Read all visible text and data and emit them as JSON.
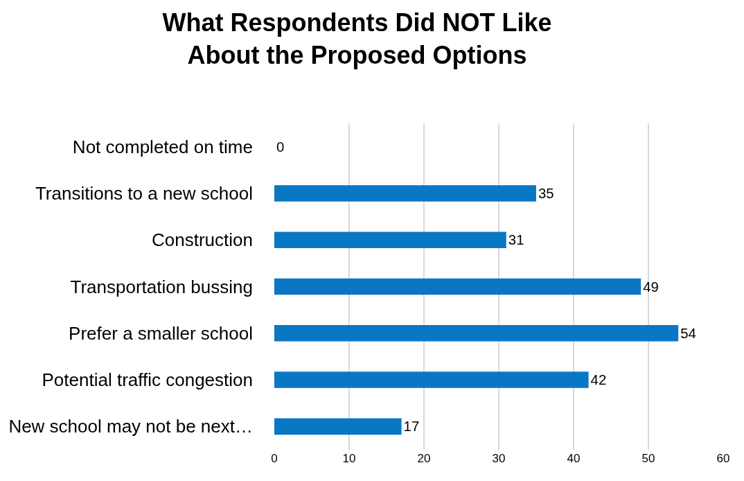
{
  "chart_data": {
    "type": "bar",
    "orientation": "horizontal",
    "title": "What Respondents Did NOT Like About the Proposed Options",
    "categories": [
      "Not completed on time",
      "Transitions to a new school",
      "Construction",
      "Transportation bussing",
      "Prefer a smaller school",
      "Potential traffic congestion",
      "New school may not be next…"
    ],
    "values": [
      0,
      35,
      31,
      49,
      54,
      42,
      17
    ],
    "color": "#0a77c4",
    "xlim": [
      0,
      60
    ],
    "xticks": [
      0,
      10,
      20,
      30,
      40,
      50,
      60
    ],
    "grid": "x",
    "data_labels": true
  }
}
